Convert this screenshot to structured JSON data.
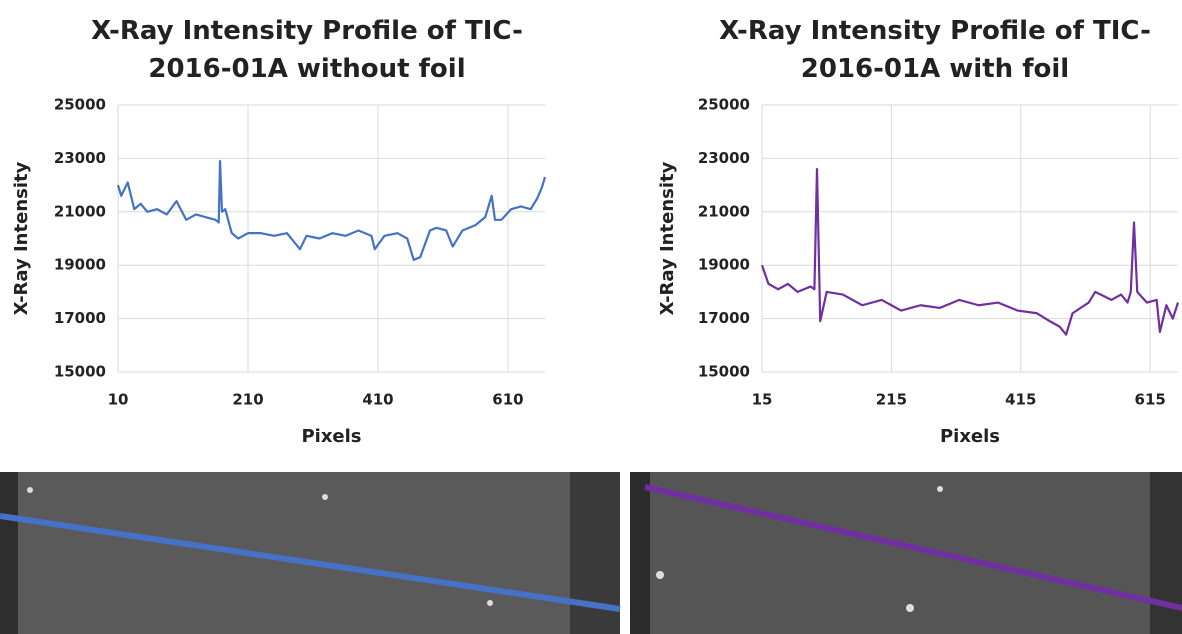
{
  "chart_data": [
    {
      "type": "line",
      "title": "X-Ray Intensity Profile of TIC-2016-01A without foil",
      "x_label": "Pixels",
      "y_label": "X-Ray Intensity",
      "xlim": [
        10,
        667
      ],
      "ylim": [
        15000,
        25000
      ],
      "xticks": [
        10,
        210,
        410,
        610
      ],
      "yticks": [
        15000,
        17000,
        19000,
        21000,
        23000,
        25000
      ],
      "grid": true,
      "series": [
        {
          "color": "#4472c4",
          "x": [
            10,
            15,
            25,
            35,
            45,
            55,
            70,
            85,
            100,
            115,
            130,
            145,
            160,
            165,
            167,
            170,
            175,
            185,
            195,
            210,
            230,
            250,
            270,
            290,
            300,
            320,
            340,
            360,
            380,
            400,
            405,
            420,
            440,
            455,
            465,
            475,
            490,
            500,
            515,
            525,
            540,
            560,
            575,
            585,
            590,
            600,
            615,
            630,
            645,
            655,
            662,
            667
          ],
          "values": [
            22000,
            21600,
            22100,
            21100,
            21300,
            21000,
            21100,
            20900,
            21400,
            20700,
            20900,
            20800,
            20700,
            20600,
            22900,
            21000,
            21100,
            20200,
            20000,
            20200,
            20200,
            20100,
            20200,
            19600,
            20100,
            20000,
            20200,
            20100,
            20300,
            20100,
            19600,
            20100,
            20200,
            20000,
            19200,
            19300,
            20300,
            20400,
            20300,
            19700,
            20300,
            20500,
            20800,
            21600,
            20700,
            20700,
            21100,
            21200,
            21100,
            21500,
            21900,
            22300
          ]
        }
      ]
    },
    {
      "type": "line",
      "title": "X-Ray Intensity Profile of TIC-2016-01A with foil",
      "x_label": "Pixels",
      "y_label": "X-Ray Intensity",
      "xlim": [
        15,
        658
      ],
      "ylim": [
        15000,
        25000
      ],
      "xticks": [
        15,
        215,
        415,
        615
      ],
      "yticks": [
        15000,
        17000,
        19000,
        21000,
        23000,
        25000
      ],
      "grid": true,
      "series": [
        {
          "color": "#7030a0",
          "x": [
            15,
            25,
            40,
            55,
            70,
            90,
            96,
            100,
            105,
            115,
            140,
            170,
            200,
            230,
            260,
            290,
            320,
            350,
            380,
            410,
            440,
            460,
            475,
            485,
            495,
            520,
            530,
            555,
            570,
            580,
            585,
            590,
            595,
            610,
            625,
            630,
            640,
            650,
            658
          ],
          "values": [
            19000,
            18300,
            18100,
            18300,
            18000,
            18200,
            18100,
            22600,
            16900,
            18000,
            17900,
            17500,
            17700,
            17300,
            17500,
            17400,
            17700,
            17500,
            17600,
            17300,
            17200,
            16900,
            16700,
            16400,
            17200,
            17600,
            18000,
            17700,
            17900,
            17600,
            18000,
            20600,
            18000,
            17600,
            17700,
            16500,
            17500,
            17000,
            17600
          ]
        }
      ]
    }
  ]
}
